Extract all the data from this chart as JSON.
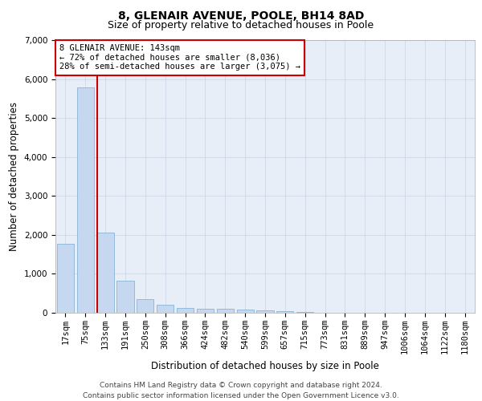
{
  "title_line1": "8, GLENAIR AVENUE, POOLE, BH14 8AD",
  "title_line2": "Size of property relative to detached houses in Poole",
  "xlabel": "Distribution of detached houses by size in Poole",
  "ylabel": "Number of detached properties",
  "bar_labels": [
    "17sqm",
    "75sqm",
    "133sqm",
    "191sqm",
    "250sqm",
    "308sqm",
    "366sqm",
    "424sqm",
    "482sqm",
    "540sqm",
    "599sqm",
    "657sqm",
    "715sqm",
    "773sqm",
    "831sqm",
    "889sqm",
    "947sqm",
    "1006sqm",
    "1064sqm",
    "1122sqm",
    "1180sqm"
  ],
  "bar_values": [
    1780,
    5780,
    2060,
    820,
    360,
    200,
    115,
    100,
    95,
    80,
    55,
    40,
    30,
    0,
    0,
    0,
    0,
    0,
    0,
    0,
    0
  ],
  "bar_color": "#c5d8f0",
  "bar_edge_color": "#7aaad0",
  "vline_color": "#cc0000",
  "annotation_text": "8 GLENAIR AVENUE: 143sqm\n← 72% of detached houses are smaller (8,036)\n28% of semi-detached houses are larger (3,075) →",
  "annotation_box_color": "#ffffff",
  "annotation_box_edge_color": "#cc0000",
  "ylim": [
    0,
    7000
  ],
  "yticks": [
    0,
    1000,
    2000,
    3000,
    4000,
    5000,
    6000,
    7000
  ],
  "grid_color": "#d0d8e8",
  "background_color": "#e8eef8",
  "footer_line1": "Contains HM Land Registry data © Crown copyright and database right 2024.",
  "footer_line2": "Contains public sector information licensed under the Open Government Licence v3.0.",
  "title_fontsize": 10,
  "subtitle_fontsize": 9,
  "axis_label_fontsize": 8.5,
  "tick_fontsize": 7.5,
  "annotation_fontsize": 7.5,
  "footer_fontsize": 6.5
}
